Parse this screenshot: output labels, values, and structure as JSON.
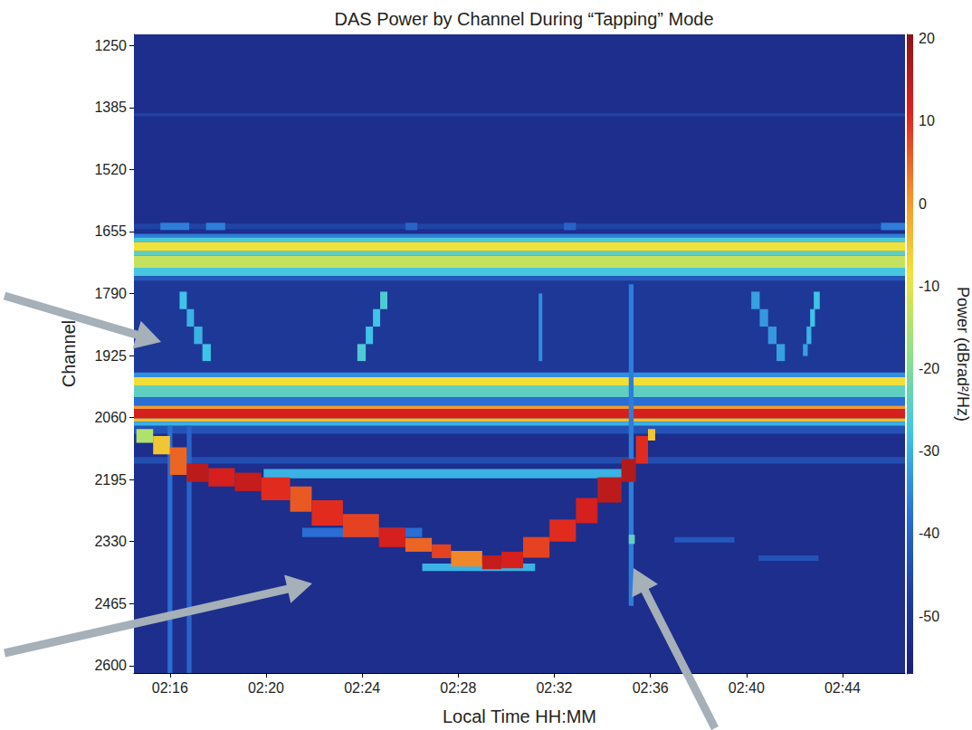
{
  "chart_data": {
    "type": "heatmap",
    "title": "DAS Power by Channel During “Tapping” Mode",
    "x_label": "Local Time HH:MM",
    "y_label": "Channel",
    "xlim": [
      134.5,
      166.6
    ],
    "xticks": [
      {
        "value": 136,
        "label": "02:16"
      },
      {
        "value": 140,
        "label": "02:20"
      },
      {
        "value": 144,
        "label": "02:24"
      },
      {
        "value": 148,
        "label": "02:28"
      },
      {
        "value": 152,
        "label": "02:32"
      },
      {
        "value": 156,
        "label": "02:36"
      },
      {
        "value": 160,
        "label": "02:40"
      },
      {
        "value": 164,
        "label": "02:44"
      }
    ],
    "ylim": [
      1226,
      2616
    ],
    "yticks": [
      1250,
      1385,
      1520,
      1655,
      1790,
      1925,
      2060,
      2195,
      2330,
      2465,
      2600
    ],
    "grid": false,
    "colorbar": {
      "label": "Power (dBrad²/Hz)",
      "lim": [
        -57,
        20.5
      ],
      "ticks": [
        20,
        10,
        0,
        -10,
        -20,
        -30,
        -40,
        -50
      ]
    },
    "cells": [
      [
        134.5,
        166.6,
        1226,
        2616,
        -52
      ],
      [
        134.5,
        166.6,
        1398,
        1404,
        -46
      ],
      [
        134.5,
        166.6,
        1638,
        1650,
        -46
      ],
      [
        134.5,
        166.6,
        1751,
        1967,
        -49
      ],
      [
        134.5,
        166.6,
        1660,
        1668,
        -36
      ],
      [
        134.5,
        166.6,
        1668,
        1678,
        -26
      ],
      [
        134.5,
        166.6,
        1678,
        1698,
        -9
      ],
      [
        134.5,
        166.6,
        1698,
        1708,
        -24
      ],
      [
        134.5,
        166.6,
        1708,
        1734,
        -13
      ],
      [
        134.5,
        166.6,
        1734,
        1752,
        -27
      ],
      [
        134.5,
        166.6,
        1752,
        1762,
        -42
      ],
      [
        134.5,
        166.6,
        1962,
        1972,
        -34
      ],
      [
        134.5,
        166.6,
        1972,
        1990,
        -8
      ],
      [
        134.5,
        166.6,
        1990,
        2016,
        -24
      ],
      [
        134.5,
        166.6,
        2016,
        2034,
        -38
      ],
      [
        134.5,
        166.6,
        2034,
        2041,
        0
      ],
      [
        134.5,
        166.6,
        2041,
        2062,
        12
      ],
      [
        134.5,
        166.6,
        2062,
        2069,
        -4
      ],
      [
        134.5,
        166.6,
        2069,
        2078,
        -30
      ],
      [
        134.5,
        166.6,
        2078,
        2095,
        -43
      ],
      [
        134.5,
        166.6,
        2146,
        2160,
        -44
      ],
      [
        139.9,
        154.8,
        2172,
        2192,
        -30
      ],
      [
        135.6,
        136.8,
        1636,
        1652,
        -36
      ],
      [
        137.5,
        138.3,
        1636,
        1652,
        -36
      ],
      [
        145.8,
        146.3,
        1636,
        1652,
        -40
      ],
      [
        152.4,
        152.9,
        1636,
        1652,
        -40
      ],
      [
        165.6,
        166.6,
        1636,
        1652,
        -36
      ],
      [
        135.9,
        136.1,
        2078,
        2616,
        -38
      ],
      [
        136.7,
        136.9,
        2078,
        2616,
        -40
      ],
      [
        155.1,
        155.3,
        1770,
        2470,
        -36
      ],
      [
        155.1,
        155.35,
        2315,
        2335,
        -24
      ],
      [
        136.4,
        136.7,
        1786,
        1824,
        -28
      ],
      [
        136.7,
        137.0,
        1824,
        1862,
        -30
      ],
      [
        137.0,
        137.35,
        1862,
        1900,
        -30
      ],
      [
        137.35,
        137.7,
        1900,
        1937,
        -28
      ],
      [
        144.75,
        145.05,
        1786,
        1824,
        -26
      ],
      [
        144.45,
        144.75,
        1824,
        1862,
        -28
      ],
      [
        144.15,
        144.45,
        1862,
        1900,
        -28
      ],
      [
        143.8,
        144.15,
        1900,
        1937,
        -26
      ],
      [
        151.35,
        151.5,
        1790,
        1937,
        -34
      ],
      [
        160.2,
        160.55,
        1786,
        1824,
        -32
      ],
      [
        160.55,
        160.9,
        1824,
        1862,
        -33
      ],
      [
        160.9,
        161.25,
        1862,
        1900,
        -33
      ],
      [
        161.25,
        161.6,
        1900,
        1937,
        -32
      ],
      [
        162.8,
        163.05,
        1786,
        1824,
        -28
      ],
      [
        162.65,
        162.85,
        1824,
        1862,
        -28
      ],
      [
        162.5,
        162.7,
        1862,
        1900,
        -30
      ],
      [
        162.35,
        162.55,
        1900,
        1926,
        -32
      ],
      [
        157.0,
        159.5,
        2320,
        2332,
        -42
      ],
      [
        160.5,
        163.0,
        2360,
        2372,
        -43
      ],
      [
        146.5,
        151.2,
        2378,
        2394,
        -30
      ],
      [
        141.5,
        146.5,
        2300,
        2320,
        -38
      ],
      [
        134.6,
        135.3,
        2085,
        2115,
        -15
      ],
      [
        135.3,
        136.0,
        2100,
        2140,
        -5
      ],
      [
        136.0,
        136.7,
        2125,
        2185,
        5
      ],
      [
        136.7,
        137.6,
        2160,
        2200,
        15
      ],
      [
        137.6,
        138.7,
        2170,
        2210,
        12
      ],
      [
        138.7,
        139.8,
        2180,
        2220,
        14
      ],
      [
        139.8,
        141.0,
        2190,
        2240,
        10
      ],
      [
        141.0,
        141.9,
        2210,
        2265,
        6
      ],
      [
        141.9,
        143.2,
        2240,
        2295,
        10
      ],
      [
        143.2,
        144.7,
        2270,
        2320,
        8
      ],
      [
        144.7,
        145.8,
        2300,
        2342,
        12
      ],
      [
        145.8,
        146.9,
        2322,
        2352,
        5
      ],
      [
        146.9,
        147.7,
        2336,
        2366,
        8
      ],
      [
        147.7,
        149.0,
        2350,
        2384,
        2
      ],
      [
        149.0,
        149.8,
        2360,
        2390,
        14
      ],
      [
        149.8,
        150.7,
        2352,
        2388,
        12
      ],
      [
        150.7,
        151.8,
        2320,
        2365,
        8
      ],
      [
        151.8,
        152.9,
        2282,
        2330,
        10
      ],
      [
        152.9,
        153.8,
        2235,
        2290,
        12
      ],
      [
        153.8,
        154.8,
        2190,
        2245,
        15
      ],
      [
        154.8,
        155.4,
        2150,
        2200,
        16
      ],
      [
        155.4,
        155.9,
        2100,
        2160,
        10
      ],
      [
        155.9,
        156.2,
        2085,
        2110,
        -5
      ]
    ]
  }
}
